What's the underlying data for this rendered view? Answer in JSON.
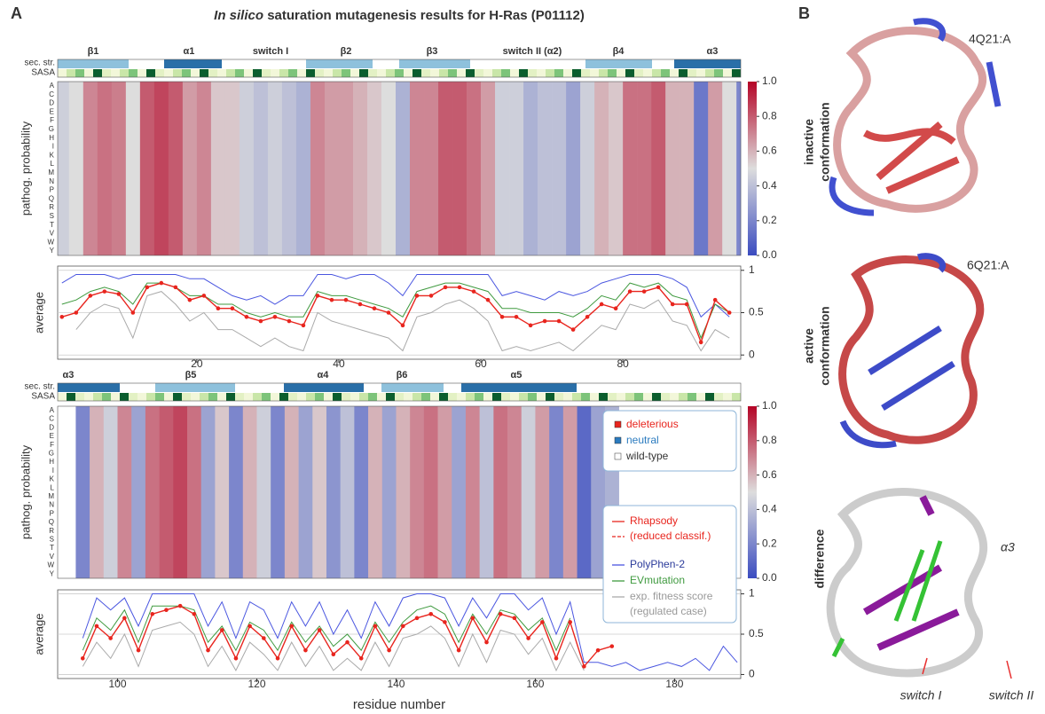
{
  "panel_a_label": "A",
  "panel_b_label": "B",
  "title": {
    "italic": "In silico",
    "rest": "saturation mutagenesis results for H-Ras (P01112)"
  },
  "row_labels": {
    "sec_str": "sec. str.",
    "sasa": "SASA"
  },
  "amino_acids": [
    "A",
    "C",
    "D",
    "E",
    "F",
    "G",
    "H",
    "I",
    "K",
    "L",
    "M",
    "N",
    "P",
    "Q",
    "R",
    "S",
    "T",
    "V",
    "W",
    "Y"
  ],
  "chart_data": [
    {
      "type": "line",
      "heatmap_ylabel": "pathog. probability",
      "ylabel": "average",
      "sec_str_labels": [
        "β1",
        "α1",
        "switch I",
        "β2",
        "β3",
        "switch II (α2)",
        "β4",
        "α3"
      ],
      "xlim": [
        0.4,
        96.6
      ],
      "xticks": [
        20,
        40,
        60,
        80
      ],
      "ylim": [
        -0.05,
        1.05
      ],
      "yticks": [
        0,
        0.5,
        1
      ],
      "x": [
        1,
        3,
        5,
        7,
        9,
        11,
        13,
        15,
        17,
        19,
        21,
        23,
        25,
        27,
        29,
        31,
        33,
        35,
        37,
        39,
        41,
        43,
        45,
        47,
        49,
        51,
        53,
        55,
        57,
        59,
        61,
        63,
        65,
        67,
        69,
        71,
        73,
        75,
        77,
        79,
        81,
        83,
        85,
        87,
        89,
        91,
        93,
        95,
        97
      ],
      "series": [
        {
          "name": "Rhapsody",
          "color": "#e8251e",
          "values": [
            0.45,
            0.5,
            0.7,
            0.75,
            0.72,
            0.5,
            0.8,
            0.85,
            0.8,
            0.65,
            0.7,
            0.55,
            0.55,
            0.45,
            0.4,
            0.45,
            0.4,
            0.35,
            0.7,
            0.65,
            0.65,
            0.6,
            0.55,
            0.5,
            0.35,
            0.7,
            0.7,
            0.8,
            0.8,
            0.75,
            0.65,
            0.45,
            0.45,
            0.35,
            0.4,
            0.4,
            0.3,
            0.45,
            0.6,
            0.55,
            0.75,
            0.75,
            0.8,
            0.6,
            0.6,
            0.15,
            0.65,
            0.5,
            0.2
          ]
        },
        {
          "name": "PolyPhen-2",
          "color": "#4a56e0",
          "values": [
            0.85,
            0.95,
            0.95,
            0.95,
            0.9,
            0.95,
            0.95,
            0.95,
            0.95,
            0.9,
            0.9,
            0.8,
            0.7,
            0.65,
            0.7,
            0.6,
            0.7,
            0.7,
            0.95,
            0.95,
            0.9,
            0.95,
            0.95,
            0.85,
            0.7,
            0.95,
            0.95,
            0.95,
            0.95,
            0.95,
            0.95,
            0.7,
            0.75,
            0.7,
            0.65,
            0.75,
            0.7,
            0.75,
            0.85,
            0.9,
            0.95,
            0.95,
            0.95,
            0.9,
            0.8,
            0.45,
            0.6,
            0.45,
            0.5
          ]
        },
        {
          "name": "EVmutation",
          "color": "#3f9a3f",
          "values": [
            0.6,
            0.65,
            0.75,
            0.8,
            0.75,
            0.6,
            0.85,
            0.85,
            0.8,
            0.7,
            0.7,
            0.6,
            0.6,
            0.5,
            0.45,
            0.5,
            0.45,
            0.45,
            0.75,
            0.7,
            0.7,
            0.65,
            0.6,
            0.55,
            0.45,
            0.75,
            0.8,
            0.85,
            0.85,
            0.8,
            0.75,
            0.55,
            0.55,
            0.5,
            0.5,
            0.5,
            0.45,
            0.55,
            0.7,
            0.65,
            0.85,
            0.8,
            0.85,
            0.7,
            0.65,
            0.2,
            0.6,
            0.5,
            0.3
          ]
        },
        {
          "name": "exp. fitness score",
          "color": "#aaaaaa",
          "values": [
            null,
            0.3,
            0.5,
            0.6,
            0.55,
            0.2,
            0.7,
            0.75,
            0.6,
            0.4,
            0.5,
            0.3,
            0.3,
            0.2,
            0.1,
            0.2,
            0.1,
            0.05,
            0.5,
            0.4,
            0.35,
            0.3,
            0.25,
            0.2,
            0.05,
            0.45,
            0.5,
            0.6,
            0.65,
            0.55,
            0.4,
            0.05,
            0.1,
            0.05,
            0.1,
            0.15,
            0.05,
            0.2,
            0.35,
            0.3,
            0.6,
            0.55,
            0.65,
            0.4,
            0.35,
            0.05,
            0.3,
            0.2,
            0.05
          ]
        }
      ]
    },
    {
      "type": "line",
      "heatmap_ylabel": "pathog. probability",
      "ylabel": "average",
      "xlabel": "residue number",
      "sec_str_labels": [
        "α3",
        "β5",
        "α4",
        "β6",
        "α5"
      ],
      "xlim": [
        91.4,
        189.5
      ],
      "xticks": [
        100,
        120,
        140,
        160,
        180
      ],
      "ylim": [
        -0.05,
        1.05
      ],
      "yticks": [
        0,
        0.5,
        1
      ],
      "x": [
        95,
        97,
        99,
        101,
        103,
        105,
        107,
        109,
        111,
        113,
        115,
        117,
        119,
        121,
        123,
        125,
        127,
        129,
        131,
        133,
        135,
        137,
        139,
        141,
        143,
        145,
        147,
        149,
        151,
        153,
        155,
        157,
        159,
        161,
        163,
        165,
        167,
        169,
        171,
        173,
        175,
        177,
        179,
        181,
        183,
        185,
        187,
        189
      ],
      "series": [
        {
          "name": "Rhapsody",
          "color": "#e8251e",
          "values": [
            0.2,
            0.6,
            0.45,
            0.7,
            0.3,
            0.75,
            0.8,
            0.85,
            0.75,
            0.3,
            0.55,
            0.2,
            0.6,
            0.45,
            0.2,
            0.6,
            0.3,
            0.55,
            0.25,
            0.4,
            0.2,
            0.6,
            0.3,
            0.6,
            0.7,
            0.75,
            0.65,
            0.3,
            0.7,
            0.4,
            0.75,
            0.7,
            0.45,
            0.65,
            0.2,
            0.65,
            0.1,
            0.3,
            0.35,
            null,
            null,
            null,
            null,
            null,
            null,
            null,
            null,
            null
          ]
        },
        {
          "name": "PolyPhen-2",
          "color": "#4a56e0",
          "values": [
            0.45,
            0.95,
            0.8,
            0.95,
            0.6,
            1.0,
            1.0,
            1.0,
            1.0,
            0.6,
            0.9,
            0.45,
            0.9,
            0.8,
            0.45,
            0.9,
            0.6,
            0.9,
            0.5,
            0.8,
            0.45,
            0.9,
            0.6,
            0.95,
            1.0,
            1.0,
            0.95,
            0.6,
            0.95,
            0.7,
            1.0,
            1.0,
            0.8,
            0.95,
            0.5,
            0.9,
            0.15,
            0.15,
            0.1,
            0.15,
            0.05,
            0.1,
            0.15,
            0.1,
            0.2,
            0.05,
            0.35,
            0.15
          ]
        },
        {
          "name": "EVmutation",
          "color": "#3f9a3f",
          "values": [
            0.3,
            0.7,
            0.55,
            0.8,
            0.4,
            0.85,
            0.85,
            0.85,
            0.8,
            0.4,
            0.6,
            0.3,
            0.65,
            0.55,
            0.3,
            0.65,
            0.4,
            0.6,
            0.35,
            0.5,
            0.3,
            0.65,
            0.4,
            0.65,
            0.8,
            0.85,
            0.75,
            0.4,
            0.75,
            0.5,
            0.8,
            0.75,
            0.55,
            0.7,
            0.3,
            0.7,
            null,
            null,
            null,
            null,
            null,
            null,
            null,
            null,
            null,
            null,
            null,
            null
          ]
        },
        {
          "name": "exp. fitness score",
          "color": "#aaaaaa",
          "values": [
            0.1,
            0.4,
            0.2,
            0.5,
            0.1,
            0.55,
            0.6,
            0.65,
            0.5,
            0.1,
            0.35,
            0.05,
            0.4,
            0.25,
            0.05,
            0.4,
            0.1,
            0.35,
            0.05,
            0.2,
            0.05,
            0.4,
            0.1,
            0.45,
            0.5,
            0.6,
            0.45,
            0.1,
            0.5,
            0.15,
            0.55,
            0.5,
            0.25,
            0.45,
            0.05,
            0.4,
            0.05,
            null,
            null,
            null,
            null,
            null,
            null,
            null,
            null,
            null,
            null,
            null
          ]
        }
      ]
    }
  ],
  "colorbar": {
    "lim": [
      0,
      1
    ],
    "ticks": [
      {
        "value": 0,
        "label": "0.0"
      },
      0.2,
      0.4,
      0.6,
      0.8,
      {
        "value": 1,
        "label": "1.0"
      }
    ]
  },
  "legend": {
    "classes": [
      {
        "name": "deleterious",
        "color": "#e8251e"
      },
      {
        "name": "neutral",
        "color": "#2b7bbf"
      },
      {
        "name": "wild-type",
        "color": "#ffffff"
      }
    ],
    "reduced_note": "(reduced classif.)",
    "regulated_note": "(regulated case)"
  },
  "panel_b": {
    "inactive_id": "4Q21:A",
    "inactive_label": [
      "inactive",
      "conformation"
    ],
    "active_id": "6Q21:A",
    "active_label": [
      "active",
      "conformation"
    ],
    "difference_label": "difference",
    "alpha3": "α3",
    "switch1": "switch I",
    "switch2": "switch II"
  }
}
